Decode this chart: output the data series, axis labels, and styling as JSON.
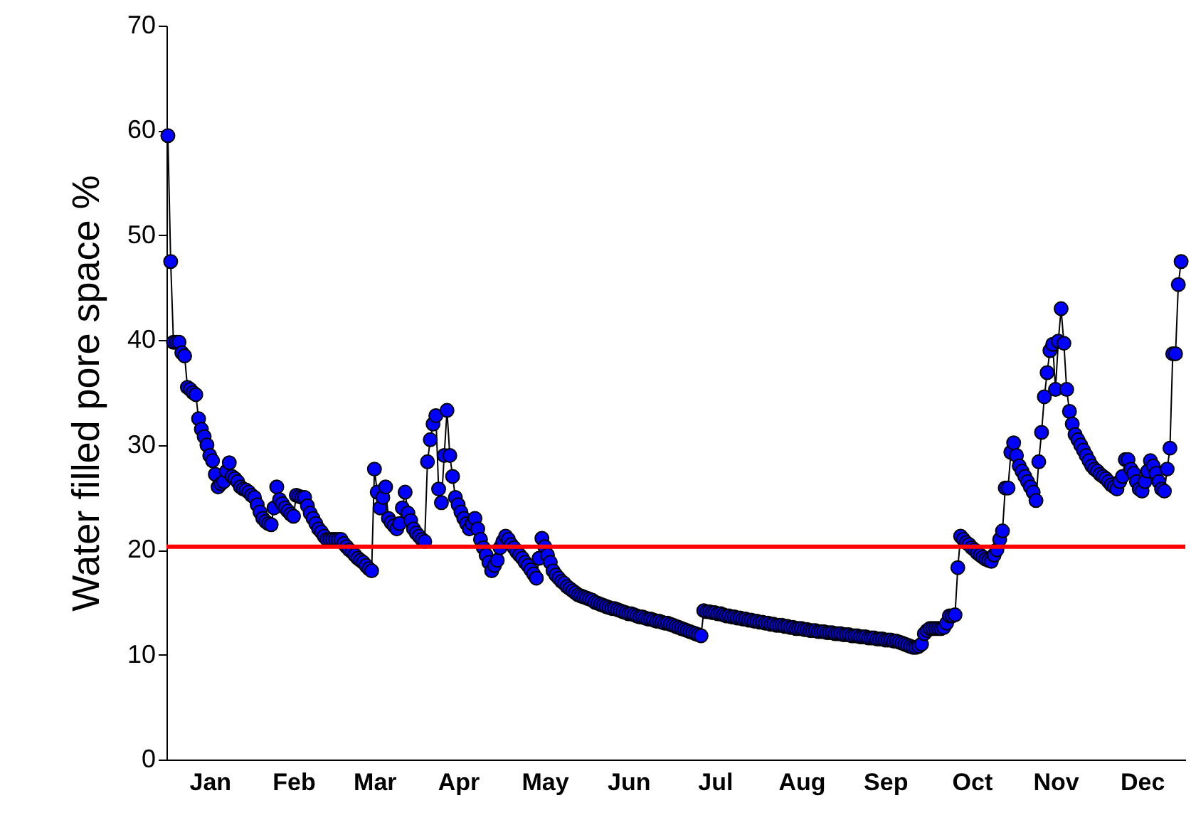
{
  "chart_data": {
    "type": "line",
    "ylabel": "Water filled pore space %",
    "marker": "circle",
    "categories": [
      null,
      null,
      null,
      null,
      null,
      null,
      null,
      null,
      null,
      null,
      null,
      null,
      null,
      null,
      null,
      "Jan",
      null,
      null,
      null,
      null,
      null,
      null,
      null,
      null,
      null,
      null,
      null,
      null,
      null,
      null,
      null,
      null,
      null,
      null,
      null,
      null,
      null,
      null,
      null,
      null,
      null,
      null,
      null,
      null,
      null,
      "Feb",
      null,
      null,
      null,
      null,
      null,
      null,
      null,
      null,
      null,
      null,
      null,
      null,
      null,
      null,
      null,
      null,
      null,
      null,
      null,
      null,
      null,
      null,
      null,
      null,
      null,
      null,
      null,
      null,
      "Mar",
      null,
      null,
      null,
      null,
      null,
      null,
      null,
      null,
      null,
      null,
      null,
      null,
      null,
      null,
      null,
      null,
      null,
      null,
      null,
      null,
      null,
      null,
      null,
      null,
      null,
      null,
      null,
      null,
      null,
      "Apr",
      null,
      null,
      null,
      null,
      null,
      null,
      null,
      null,
      null,
      null,
      null,
      null,
      null,
      null,
      null,
      null,
      null,
      null,
      null,
      null,
      null,
      null,
      null,
      null,
      null,
      null,
      null,
      null,
      null,
      null,
      "May",
      null,
      null,
      null,
      null,
      null,
      null,
      null,
      null,
      null,
      null,
      null,
      null,
      null,
      null,
      null,
      null,
      null,
      null,
      null,
      null,
      null,
      null,
      null,
      null,
      null,
      null,
      null,
      null,
      null,
      "Jun",
      null,
      null,
      null,
      null,
      null,
      null,
      null,
      null,
      null,
      null,
      null,
      null,
      null,
      null,
      null,
      null,
      null,
      null,
      null,
      null,
      null,
      null,
      null,
      null,
      null,
      null,
      null,
      null,
      null,
      null,
      "Jul",
      null,
      null,
      null,
      null,
      null,
      null,
      null,
      null,
      null,
      null,
      null,
      null,
      null,
      null,
      null,
      null,
      null,
      null,
      null,
      null,
      null,
      null,
      null,
      null,
      null,
      null,
      null,
      null,
      null,
      null,
      "Aug",
      null,
      null,
      null,
      null,
      null,
      null,
      null,
      null,
      null,
      null,
      null,
      null,
      null,
      null,
      null,
      null,
      null,
      null,
      null,
      null,
      null,
      null,
      null,
      null,
      null,
      null,
      null,
      null,
      null,
      "Sep",
      null,
      null,
      null,
      null,
      null,
      null,
      null,
      null,
      null,
      null,
      null,
      null,
      null,
      null,
      null,
      null,
      null,
      null,
      null,
      null,
      null,
      null,
      null,
      null,
      null,
      null,
      null,
      null,
      null,
      null,
      "Oct",
      null,
      null,
      null,
      null,
      null,
      null,
      null,
      null,
      null,
      null,
      null,
      null,
      null,
      null,
      null,
      null,
      null,
      null,
      null,
      null,
      null,
      null,
      null,
      null,
      null,
      null,
      null,
      null,
      null,
      "Nov",
      null,
      null,
      null,
      null,
      null,
      null,
      null,
      null,
      null,
      null,
      null,
      null,
      null,
      null,
      null,
      null,
      null,
      null,
      null,
      null,
      null,
      null,
      null,
      null,
      null,
      null,
      null,
      null,
      null,
      null,
      "Dec",
      null,
      null,
      null,
      null,
      null,
      null,
      null,
      null,
      null,
      null,
      null,
      null,
      null,
      null,
      null
    ],
    "ylim": [
      0,
      70
    ],
    "yticks": [
      0,
      10,
      20,
      30,
      40,
      50,
      60,
      70
    ],
    "series": [
      {
        "color": "#0000ff",
        "values": [
          59.5,
          47.5,
          39.8,
          39.8,
          39.8,
          38.8,
          38.5,
          35.5,
          35.3,
          35.0,
          34.8,
          32.5,
          31.5,
          30.8,
          30.0,
          29.0,
          28.5,
          27.2,
          26.0,
          26.3,
          26.5,
          27.5,
          28.3,
          27.0,
          26.8,
          26.5,
          26.0,
          25.8,
          25.7,
          25.5,
          25.2,
          25.0,
          24.3,
          23.6,
          23.0,
          22.7,
          22.5,
          22.4,
          24.0,
          26.0,
          24.8,
          24.4,
          24.0,
          23.7,
          23.4,
          23.2,
          25.2,
          25.1,
          25.0,
          25.0,
          24.2,
          23.5,
          23.0,
          22.5,
          22.0,
          21.7,
          21.3,
          21.0,
          21.0,
          21.0,
          21.0,
          21.0,
          21.0,
          20.6,
          20.3,
          20.0,
          19.8,
          19.5,
          19.2,
          19.0,
          18.8,
          18.5,
          18.2,
          18.0,
          27.7,
          25.5,
          24.0,
          25.0,
          26.0,
          23.0,
          22.6,
          22.3,
          22.0,
          22.5,
          24.0,
          25.5,
          23.5,
          22.8,
          22.0,
          21.6,
          21.3,
          21.0,
          20.8,
          28.4,
          30.5,
          32.0,
          32.8,
          25.8,
          24.5,
          29.0,
          33.3,
          29.0,
          27.0,
          25.0,
          24.3,
          23.6,
          23.0,
          22.5,
          22.0,
          22.5,
          23.0,
          22.0,
          21.0,
          20.2,
          19.5,
          18.8,
          18.0,
          18.5,
          19.0,
          20.2,
          20.8,
          21.3,
          21.0,
          20.5,
          20.2,
          19.8,
          19.5,
          19.2,
          18.8,
          18.5,
          18.1,
          17.7,
          17.3,
          19.2,
          21.1,
          20.3,
          19.5,
          18.8,
          18.0,
          17.6,
          17.3,
          17.0,
          16.8,
          16.5,
          16.3,
          16.1,
          15.9,
          15.7,
          15.6,
          15.5,
          15.4,
          15.3,
          15.2,
          15.0,
          14.9,
          14.8,
          14.7,
          14.6,
          14.5,
          14.4,
          14.4,
          14.3,
          14.2,
          14.1,
          14.0,
          13.9,
          13.9,
          13.8,
          13.7,
          13.6,
          13.6,
          13.5,
          13.4,
          13.4,
          13.3,
          13.2,
          13.2,
          13.1,
          13.0,
          13.0,
          12.9,
          12.8,
          12.7,
          12.6,
          12.5,
          12.4,
          12.3,
          12.2,
          12.1,
          12.0,
          11.9,
          11.8,
          14.2,
          14.1,
          14.1,
          14.0,
          14.0,
          13.9,
          13.9,
          13.8,
          13.7,
          13.7,
          13.6,
          13.6,
          13.5,
          13.5,
          13.4,
          13.4,
          13.3,
          13.3,
          13.2,
          13.2,
          13.1,
          13.1,
          13.0,
          13.0,
          12.9,
          12.9,
          12.8,
          12.8,
          12.8,
          12.7,
          12.7,
          12.6,
          12.6,
          12.5,
          12.5,
          12.5,
          12.4,
          12.4,
          12.3,
          12.3,
          12.3,
          12.2,
          12.2,
          12.2,
          12.1,
          12.1,
          12.1,
          12.0,
          12.0,
          12.0,
          11.9,
          11.9,
          11.9,
          11.8,
          11.8,
          11.8,
          11.7,
          11.7,
          11.7,
          11.6,
          11.6,
          11.6,
          11.5,
          11.5,
          11.5,
          11.4,
          11.4,
          11.4,
          11.3,
          11.3,
          11.2,
          11.1,
          11.0,
          10.9,
          10.8,
          10.7,
          10.7,
          10.8,
          11.0,
          12.0,
          12.3,
          12.5,
          12.5,
          12.5,
          12.5,
          12.5,
          12.6,
          13.0,
          13.7,
          13.7,
          13.8,
          18.3,
          21.3,
          21.0,
          20.7,
          20.5,
          20.2,
          20.0,
          19.7,
          19.5,
          19.3,
          19.1,
          19.0,
          18.9,
          19.5,
          20.0,
          21.0,
          21.8,
          25.9,
          25.9,
          29.3,
          30.2,
          29.0,
          28.0,
          27.5,
          27.0,
          26.5,
          26.0,
          25.5,
          24.7,
          28.4,
          31.2,
          34.6,
          36.9,
          39.0,
          39.6,
          35.3,
          39.9,
          43.0,
          39.7,
          35.3,
          33.2,
          32.0,
          31.0,
          30.5,
          30.0,
          29.5,
          29.0,
          28.5,
          28.0,
          27.7,
          27.5,
          27.2,
          27.0,
          26.8,
          26.5,
          26.2,
          26.0,
          25.8,
          26.5,
          27.0,
          28.6,
          28.6,
          27.7,
          27.3,
          26.5,
          25.8,
          25.6,
          26.5,
          27.5,
          28.5,
          28.0,
          27.3,
          26.5,
          25.8,
          25.6,
          27.7,
          29.7,
          38.7,
          38.7,
          45.3,
          47.5,
          null
        ]
      }
    ],
    "ref_lines": [
      {
        "axis": "y",
        "value": 20.3,
        "color": "#ff0000"
      }
    ]
  }
}
